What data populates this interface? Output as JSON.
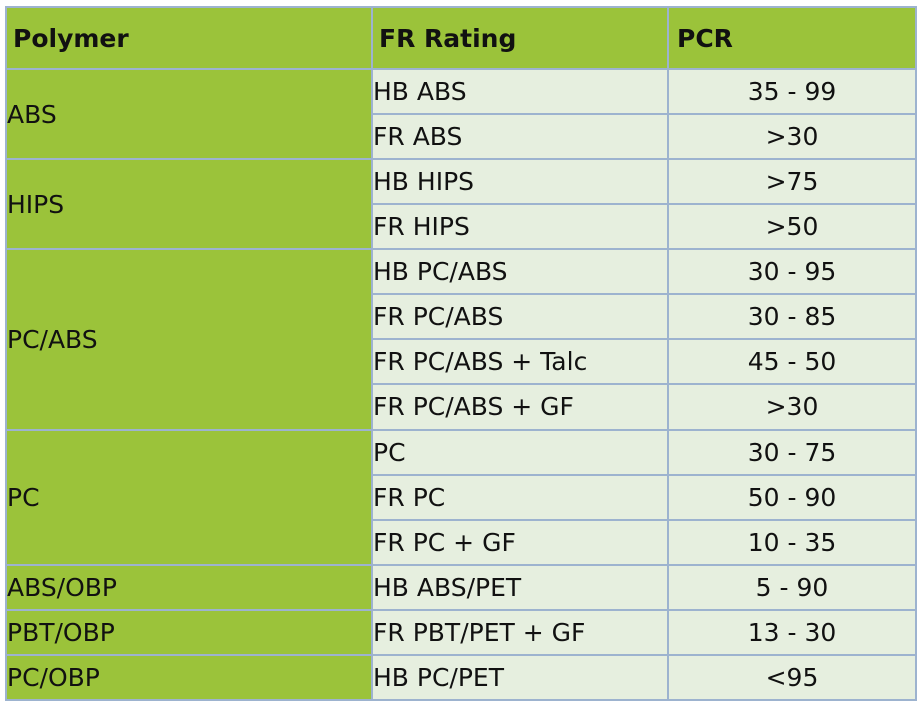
{
  "headers": [
    "Polymer",
    "FR Rating",
    "PCR"
  ],
  "groups": [
    {
      "polymer": "ABS",
      "rows": [
        {
          "rating": "HB ABS",
          "pcr": "35 - 99"
        },
        {
          "rating": "FR ABS",
          "pcr": ">30"
        }
      ]
    },
    {
      "polymer": "HIPS",
      "rows": [
        {
          "rating": "HB HIPS",
          "pcr": ">75"
        },
        {
          "rating": "FR HIPS",
          "pcr": ">50"
        }
      ]
    },
    {
      "polymer": "PC/ABS",
      "rows": [
        {
          "rating": "HB PC/ABS",
          "pcr": "30 - 95"
        },
        {
          "rating": "FR PC/ABS",
          "pcr": "30 - 85"
        },
        {
          "rating": "FR PC/ABS + Talc",
          "pcr": "45 - 50"
        },
        {
          "rating": "FR PC/ABS + GF",
          "pcr": ">30"
        }
      ]
    },
    {
      "polymer": "PC",
      "rows": [
        {
          "rating": "PC",
          "pcr": "30 - 75"
        },
        {
          "rating": "FR PC",
          "pcr": "50 - 90"
        },
        {
          "rating": "FR PC + GF",
          "pcr": "10 - 35"
        }
      ]
    },
    {
      "polymer": "ABS/OBP",
      "rows": [
        {
          "rating": "HB ABS/PET",
          "pcr": "5 - 90"
        }
      ]
    },
    {
      "polymer": "PBT/OBP",
      "rows": [
        {
          "rating": "FR PBT/PET + GF",
          "pcr": "13 - 30"
        }
      ]
    },
    {
      "polymer": "PC/OBP",
      "rows": [
        {
          "rating": "HB PC/PET",
          "pcr": "<95"
        }
      ]
    }
  ],
  "colors": {
    "header_bg": "#9bc33a",
    "polymer_bg": "#9bc33a",
    "cell_bg": "#e6efdf",
    "border": "#9db3cf"
  }
}
